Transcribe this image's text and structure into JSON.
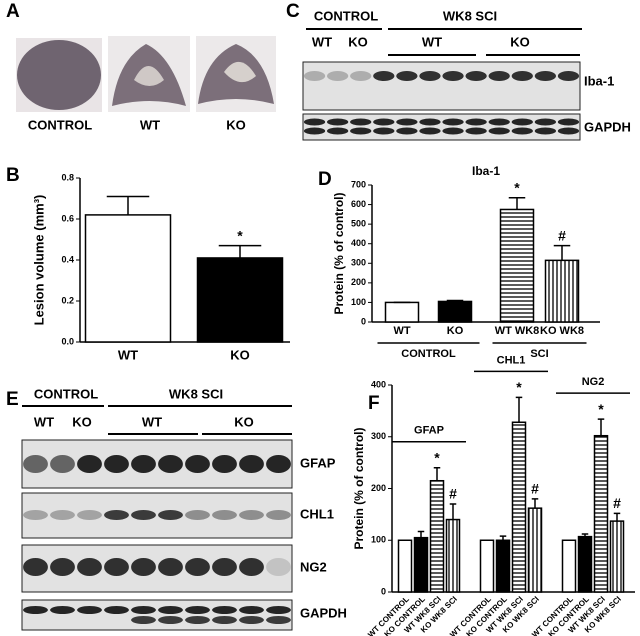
{
  "panel_letters": [
    "A",
    "B",
    "C",
    "D",
    "E",
    "F"
  ],
  "panel_a": {
    "labels": [
      "CONTROL",
      "WT",
      "KO"
    ]
  },
  "panel_c": {
    "groups": [
      "CONTROL",
      "WK8 SCI"
    ],
    "lanes": [
      "WT",
      "KO",
      "WT",
      "KO"
    ],
    "blots": [
      "Iba-1",
      "GAPDH"
    ]
  },
  "panel_e": {
    "groups": [
      "CONTROL",
      "WK8 SCI"
    ],
    "lanes": [
      "WT",
      "KO",
      "WT",
      "KO"
    ],
    "blots": [
      "GFAP",
      "CHL1",
      "NG2",
      "GAPDH"
    ]
  },
  "chart_data": [
    {
      "type": "bar",
      "ylabel": "Lesion volume (mm³)",
      "categories": [
        "WT",
        "KO"
      ],
      "values": [
        0.62,
        0.41
      ],
      "errors": [
        0.09,
        0.06
      ],
      "annotations": [
        null,
        "*"
      ],
      "fills": [
        "white",
        "black"
      ],
      "ylim": [
        0,
        0.8
      ],
      "yticks": [
        {
          "value": 0,
          "label": "0.0"
        },
        0.2,
        0.4,
        0.6,
        0.8
      ]
    },
    {
      "type": "bar",
      "title": "Iba-1",
      "ylabel": "Protein (% of control)",
      "categories": [
        "WT",
        "KO",
        "WT WK8",
        "KO WK8"
      ],
      "groups": [
        "CONTROL",
        "SCI"
      ],
      "values": [
        100,
        105,
        575,
        315
      ],
      "errors": [
        0,
        5,
        60,
        75
      ],
      "annotations": [
        null,
        null,
        "*",
        "#"
      ],
      "fills": [
        "white",
        "black",
        "hlines",
        "vlines"
      ],
      "ylim": [
        0,
        700
      ],
      "yticks": [
        0,
        100,
        200,
        300,
        400,
        500,
        600,
        700
      ]
    },
    {
      "type": "grouped-bar",
      "ylabel": "Protein (% of control)",
      "categories": [
        "WT CONTROL",
        "KO CONTROL",
        "WT WK8 SCI",
        "KO WK8 SCI"
      ],
      "fills": [
        "white",
        "black",
        "hlines",
        "vlines"
      ],
      "ylim": [
        0,
        400
      ],
      "yticks": [
        0,
        100,
        200,
        300,
        400
      ],
      "series": [
        {
          "name": "GFAP",
          "values": [
            100,
            105,
            215,
            140
          ],
          "errors": [
            0,
            12,
            25,
            30
          ],
          "annotations": [
            null,
            null,
            "*",
            "#"
          ]
        },
        {
          "name": "CHL1",
          "values": [
            100,
            100,
            328,
            162
          ],
          "errors": [
            0,
            8,
            48,
            18
          ],
          "annotations": [
            null,
            null,
            "*",
            "#"
          ]
        },
        {
          "name": "NG2",
          "values": [
            100,
            107,
            302,
            137
          ],
          "errors": [
            0,
            5,
            32,
            15
          ],
          "annotations": [
            null,
            null,
            "*",
            "#"
          ]
        }
      ]
    }
  ]
}
